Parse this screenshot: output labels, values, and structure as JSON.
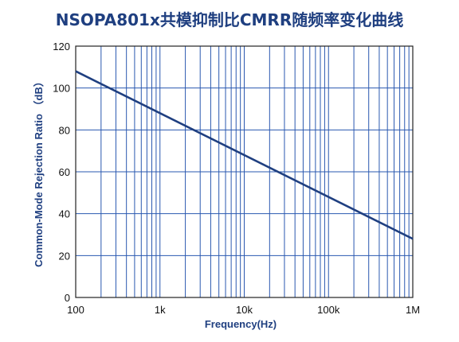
{
  "chart_data": {
    "type": "line",
    "title": "NSOPA801x共模抑制比CMRR随频率变化曲线",
    "xlabel": "Frequency(Hz)",
    "ylabel": "Common-Mode Rejection Ratio （dB）",
    "x_scale": "log",
    "xlim": [
      100,
      1000000
    ],
    "ylim": [
      0,
      120
    ],
    "x_ticks": [
      {
        "value": 100,
        "label": "100"
      },
      {
        "value": 1000,
        "label": "1k"
      },
      {
        "value": 10000,
        "label": "10k"
      },
      {
        "value": 100000,
        "label": "100k"
      },
      {
        "value": 1000000,
        "label": "1M"
      }
    ],
    "y_ticks": [
      0,
      20,
      40,
      60,
      80,
      100,
      120
    ],
    "grid": true,
    "legend": "none",
    "series": [
      {
        "x": [
          100,
          1000000
        ],
        "y": [
          108,
          28
        ],
        "color": "#1f3f80"
      }
    ],
    "colors": {
      "title": "#1f3f80",
      "axis_label": "#1f3f80",
      "grid": "#2a58b0",
      "line": "#1f3f80",
      "frame": "#222222"
    }
  }
}
